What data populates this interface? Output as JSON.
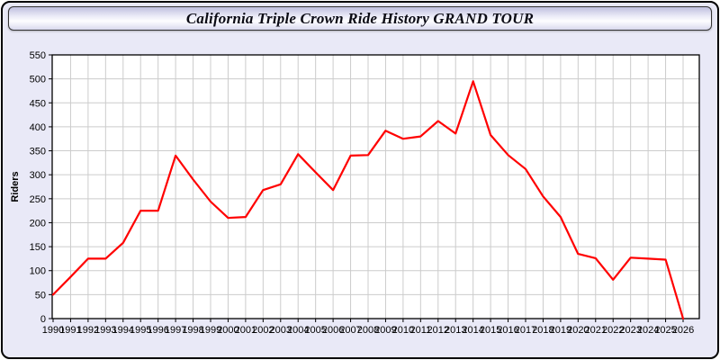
{
  "window": {
    "title": "California Triple Crown Ride History GRAND TOUR"
  },
  "colors": {
    "line": "#ff0000",
    "panel_bg": "#e9e9f7",
    "plot_bg": "#ffffff",
    "grid": "#cccccc",
    "axis": "#000000",
    "tick_text": "#000000"
  },
  "chart_data": {
    "type": "line",
    "title": "California Triple Crown Ride History GRAND TOUR",
    "xlabel": "",
    "ylabel": "Riders",
    "ylim": [
      0,
      550
    ],
    "y_tick_step": 50,
    "grid": true,
    "legend_position": "none",
    "marker": "none",
    "categories": [
      1990,
      1991,
      1992,
      1993,
      1994,
      1995,
      1996,
      1997,
      1998,
      1999,
      2000,
      2001,
      2002,
      2003,
      2004,
      2005,
      2006,
      2007,
      2008,
      2009,
      2010,
      2011,
      2012,
      2013,
      2014,
      2015,
      2016,
      2017,
      2018,
      2019,
      2020,
      2021,
      2022,
      2023,
      2024,
      2025,
      2026
    ],
    "series": [
      {
        "name": "Riders",
        "values": [
          50,
          87,
          125,
          125,
          158,
          225,
          225,
          340,
          290,
          244,
          210,
          212,
          268,
          280,
          343,
          305,
          268,
          340,
          341,
          392,
          375,
          380,
          412,
          386,
          495,
          383,
          341,
          312,
          255,
          212,
          135,
          126,
          81,
          127,
          125,
          123,
          0
        ]
      }
    ]
  }
}
